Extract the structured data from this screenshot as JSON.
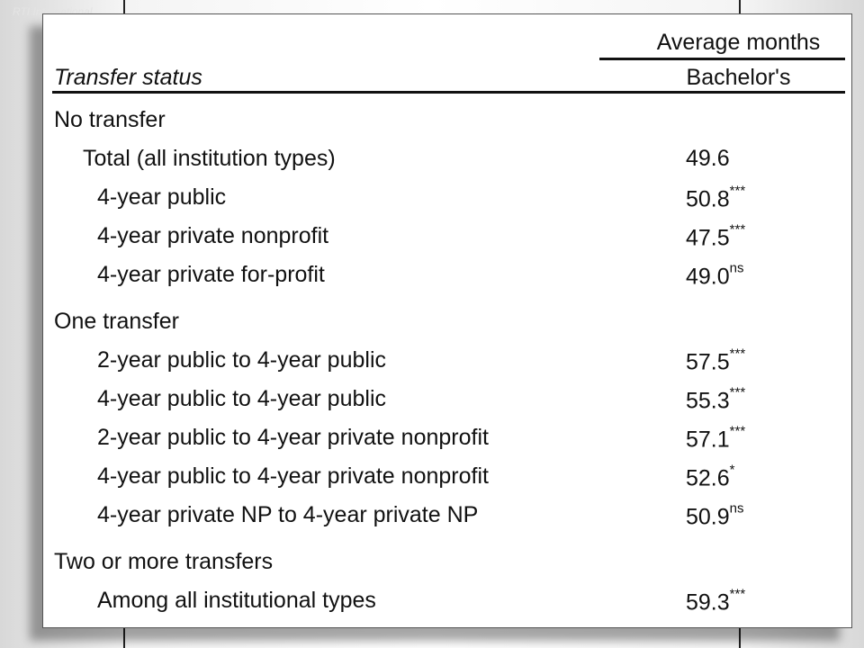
{
  "slide": {
    "watermark": "RTI International"
  },
  "table": {
    "header": {
      "group": "Average months",
      "row_header": "Transfer status",
      "column": "Bachelor's"
    },
    "sections": [
      {
        "title": "No transfer",
        "rows": [
          {
            "label": "Total (all institution types)",
            "value": "49.6"
          },
          {
            "label": "4-year public",
            "value": "50.8",
            "sig": "***"
          },
          {
            "label": "4-year private nonprofit",
            "value": "47.5",
            "sig": "***"
          },
          {
            "label": "4-year private for-profit",
            "value": "49.0",
            "sig": "ns"
          }
        ]
      },
      {
        "title": "One transfer",
        "rows": [
          {
            "label": "2-year public to 4-year public",
            "value": "57.5",
            "sig": "***"
          },
          {
            "label": "4-year public to 4-year public",
            "value": "55.3",
            "sig": "***"
          },
          {
            "label": "2-year public to 4-year private nonprofit",
            "value": "57.1",
            "sig": "***"
          },
          {
            "label": "4-year public to 4-year private nonprofit",
            "value": "52.6",
            "sig": "*"
          },
          {
            "label": "4-year private NP to 4-year private NP",
            "value": "50.9",
            "sig": "ns"
          }
        ]
      },
      {
        "title": "Two or more transfers",
        "rows": [
          {
            "label": "Among all institutional types",
            "value": "59.3",
            "sig": "***"
          }
        ]
      }
    ]
  }
}
